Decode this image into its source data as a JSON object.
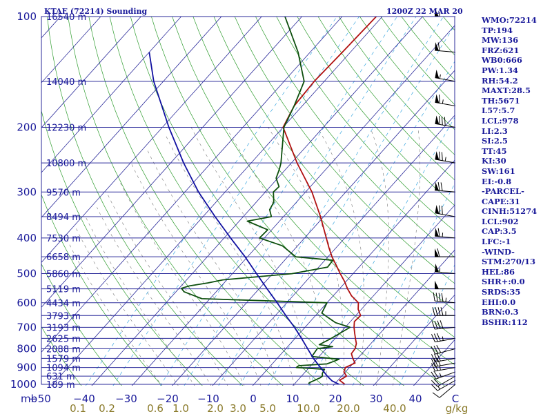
{
  "header": {
    "station": "KTAE (72214) Sounding",
    "time": "1200Z 22 MAR 20"
  },
  "indices": [
    "WMO:72214",
    "TP:194",
    "MW:136",
    "FRZ:621",
    "WB0:666",
    "PW:1.34",
    "RH:54.2",
    "MAXT:28.5",
    "TH:5671",
    "L57:5.7",
    "LCL:978",
    "LI:2.3",
    "SI:2.5",
    "TT:45",
    "KI:30",
    "SW:161",
    "EI:-0.8",
    "-PARCEL-",
    "CAPE:31",
    "CINH:51274",
    "LCL:902",
    "CAP:3.5",
    "LFC:-1",
    "-WIND-",
    "STM:270/13",
    "HEL:86",
    "SHR+:0.0",
    "SRDS:35",
    "EHI:0.0",
    "BRN:0.3",
    "BSHR:112"
  ],
  "chart_data": {
    "type": "line",
    "title": "KTAE (72214) Sounding",
    "ylabel": "mb",
    "y_scale": "log",
    "ylim": [
      1000,
      100
    ],
    "pressure_levels": [
      {
        "p": 100,
        "label": "100",
        "height": "16540 m"
      },
      {
        "p": 150,
        "label": "",
        "height": "14040 m"
      },
      {
        "p": 200,
        "label": "200",
        "height": "12230 m"
      },
      {
        "p": 250,
        "label": "",
        "height": "10800 m"
      },
      {
        "p": 300,
        "label": "300",
        "height": "9570 m"
      },
      {
        "p": 350,
        "label": "",
        "height": "8494 m"
      },
      {
        "p": 400,
        "label": "400",
        "height": "7530 m"
      },
      {
        "p": 450,
        "label": "",
        "height": "6658 m"
      },
      {
        "p": 500,
        "label": "500",
        "height": "5860 m"
      },
      {
        "p": 550,
        "label": "",
        "height": "5119 m"
      },
      {
        "p": 600,
        "label": "600",
        "height": "4434 m"
      },
      {
        "p": 650,
        "label": "",
        "height": "3793 m"
      },
      {
        "p": 700,
        "label": "700",
        "height": "3193 m"
      },
      {
        "p": 750,
        "label": "",
        "height": "2625 m"
      },
      {
        "p": 800,
        "label": "800",
        "height": "2088 m"
      },
      {
        "p": 850,
        "label": "",
        "height": "1579 m"
      },
      {
        "p": 900,
        "label": "900",
        "height": "1094 m"
      },
      {
        "p": 950,
        "label": "",
        "height": "631 m"
      },
      {
        "p": 1000,
        "label": "1000",
        "height": "189 m"
      }
    ],
    "temperature_ticks": [
      "−50",
      "−40",
      "−30",
      "−20",
      "−10",
      "0",
      "10",
      "20",
      "30",
      "40",
      "C"
    ],
    "temperature_tick_values": [
      -50,
      -40,
      -30,
      -20,
      -10,
      0,
      10,
      20,
      30,
      40
    ],
    "mixing_ratio_ticks": [
      "0.1",
      "0.2",
      "0.6",
      "1.0",
      "2.0",
      "3.0",
      "5.0",
      "10.0",
      "20.0",
      "40.0",
      "g/kg"
    ],
    "series": [
      {
        "name": "temperature",
        "color": "#b01010",
        "points": [
          [
            1000,
            22.6
          ],
          [
            975,
            20.4
          ],
          [
            950,
            21.2
          ],
          [
            925,
            19.6
          ],
          [
            900,
            19.0
          ],
          [
            875,
            20.4
          ],
          [
            850,
            18.8
          ],
          [
            825,
            17.4
          ],
          [
            800,
            17.2
          ],
          [
            775,
            16.4
          ],
          [
            750,
            15.0
          ],
          [
            725,
            13.6
          ],
          [
            700,
            12.2
          ],
          [
            675,
            11.0
          ],
          [
            650,
            11.2
          ],
          [
            625,
            9.2
          ],
          [
            600,
            7.8
          ],
          [
            575,
            4.6
          ],
          [
            550,
            2.0
          ],
          [
            525,
            -0.4
          ],
          [
            500,
            -3.2
          ],
          [
            475,
            -6.0
          ],
          [
            450,
            -9.0
          ],
          [
            425,
            -11.8
          ],
          [
            400,
            -14.6
          ],
          [
            350,
            -20.8
          ],
          [
            300,
            -28.4
          ],
          [
            250,
            -38.6
          ],
          [
            200,
            -50.0
          ],
          [
            175,
            -52.0
          ],
          [
            150,
            -52.5
          ],
          [
            125,
            -52.0
          ],
          [
            100,
            -51.5
          ]
        ]
      },
      {
        "name": "dewpoint",
        "color": "#0d4f0d",
        "points": [
          [
            1000,
            13.6
          ],
          [
            990,
            13.4
          ],
          [
            960,
            15.0
          ],
          [
            950,
            15.2
          ],
          [
            935,
            14.6
          ],
          [
            910,
            14.2
          ],
          [
            900,
            6.8
          ],
          [
            890,
            7.0
          ],
          [
            880,
            13.6
          ],
          [
            870,
            14.4
          ],
          [
            855,
            15.6
          ],
          [
            840,
            8.2
          ],
          [
            800,
            7.8
          ],
          [
            790,
            11.2
          ],
          [
            780,
            7.4
          ],
          [
            750,
            9.0
          ],
          [
            700,
            11.2
          ],
          [
            680,
            6.6
          ],
          [
            660,
            3.8
          ],
          [
            640,
            1.0
          ],
          [
            600,
            0.0
          ],
          [
            585,
            -32.0
          ],
          [
            560,
            -38.0
          ],
          [
            548,
            -39.4
          ],
          [
            540,
            -38.0
          ],
          [
            530,
            -34.0
          ],
          [
            520,
            -31.0
          ],
          [
            500,
            -15.2
          ],
          [
            480,
            -7.8
          ],
          [
            460,
            -8.0
          ],
          [
            450,
            -18.0
          ],
          [
            420,
            -23.8
          ],
          [
            400,
            -31.2
          ],
          [
            380,
            -31.0
          ],
          [
            360,
            -38.0
          ],
          [
            350,
            -33.0
          ],
          [
            335,
            -35.0
          ],
          [
            320,
            -35.6
          ],
          [
            300,
            -38.0
          ],
          [
            290,
            -37.8
          ],
          [
            275,
            -40.4
          ],
          [
            260,
            -41.6
          ],
          [
            250,
            -42.6
          ],
          [
            200,
            -49.8
          ],
          [
            175,
            -52.0
          ],
          [
            150,
            -55.0
          ],
          [
            125,
            -63.0
          ],
          [
            100,
            -74.2
          ]
        ]
      },
      {
        "name": "parcel",
        "color": "#1010a0",
        "points": [
          [
            1000,
            21.2
          ],
          [
            978,
            18.6
          ],
          [
            950,
            16.4
          ],
          [
            900,
            12.8
          ],
          [
            850,
            9.0
          ],
          [
            800,
            5.4
          ],
          [
            750,
            1.6
          ],
          [
            700,
            -2.6
          ],
          [
            650,
            -7.4
          ],
          [
            600,
            -12.4
          ],
          [
            550,
            -18.0
          ],
          [
            500,
            -24.0
          ],
          [
            450,
            -30.6
          ],
          [
            400,
            -38.4
          ],
          [
            350,
            -47.0
          ],
          [
            300,
            -56.6
          ],
          [
            250,
            -66.8
          ],
          [
            200,
            -78.4
          ],
          [
            150,
            -92.4
          ],
          [
            125,
            -100.0
          ]
        ]
      }
    ],
    "wind_barbs": [
      {
        "p": 1000,
        "dir": 230,
        "speed_kt": 10
      },
      {
        "p": 975,
        "dir": 240,
        "speed_kt": 15
      },
      {
        "p": 950,
        "dir": 240,
        "speed_kt": 20
      },
      {
        "p": 925,
        "dir": 250,
        "speed_kt": 25
      },
      {
        "p": 900,
        "dir": 260,
        "speed_kt": 25
      },
      {
        "p": 875,
        "dir": 260,
        "speed_kt": 30
      },
      {
        "p": 850,
        "dir": 260,
        "speed_kt": 30
      },
      {
        "p": 800,
        "dir": 255,
        "speed_kt": 30
      },
      {
        "p": 750,
        "dir": 260,
        "speed_kt": 35
      },
      {
        "p": 700,
        "dir": 265,
        "speed_kt": 40
      },
      {
        "p": 650,
        "dir": 270,
        "speed_kt": 45
      },
      {
        "p": 600,
        "dir": 275,
        "speed_kt": 45
      },
      {
        "p": 550,
        "dir": 270,
        "speed_kt": 50
      },
      {
        "p": 500,
        "dir": 275,
        "speed_kt": 55
      },
      {
        "p": 450,
        "dir": 270,
        "speed_kt": 60
      },
      {
        "p": 400,
        "dir": 275,
        "speed_kt": 65
      },
      {
        "p": 350,
        "dir": 280,
        "speed_kt": 70
      },
      {
        "p": 300,
        "dir": 275,
        "speed_kt": 70
      },
      {
        "p": 250,
        "dir": 280,
        "speed_kt": 75
      },
      {
        "p": 200,
        "dir": 280,
        "speed_kt": 80
      },
      {
        "p": 175,
        "dir": 280,
        "speed_kt": 65
      },
      {
        "p": 150,
        "dir": 280,
        "speed_kt": 55
      },
      {
        "p": 125,
        "dir": 275,
        "speed_kt": 60
      },
      {
        "p": 100,
        "dir": 270,
        "speed_kt": 55
      }
    ]
  }
}
